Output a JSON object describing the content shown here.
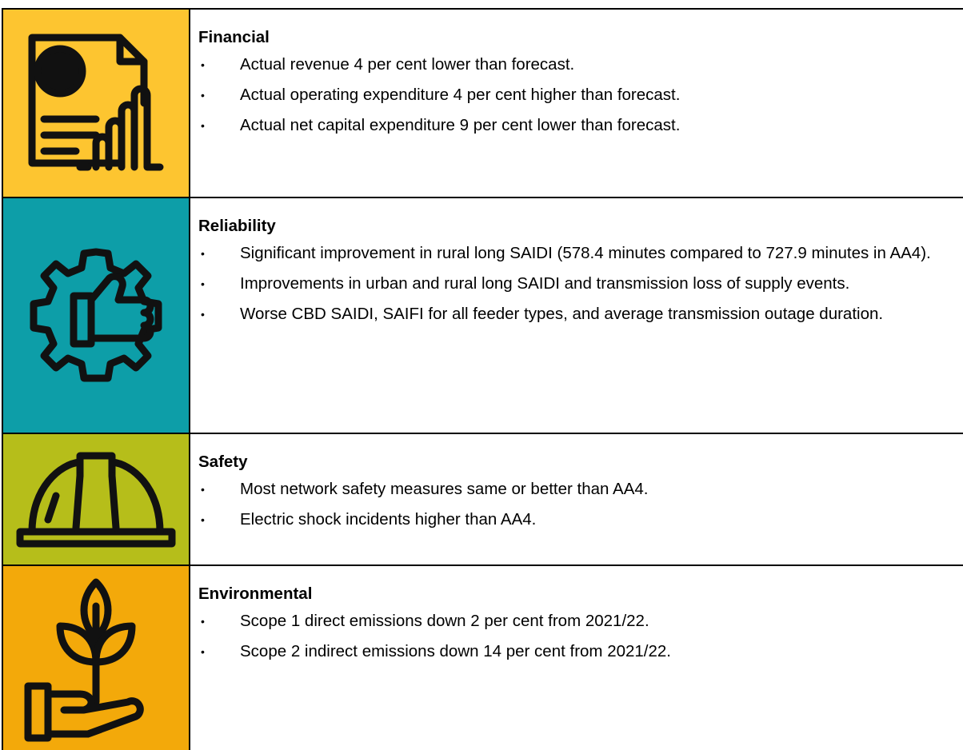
{
  "rows": [
    {
      "heading": "Financial",
      "bullets": [
        "Actual revenue 4 per cent lower than forecast.",
        "Actual operating expenditure 4 per cent higher than forecast.",
        "Actual net capital expenditure 9 per cent lower than forecast."
      ]
    },
    {
      "heading": "Reliability",
      "bullets": [
        "Significant improvement in rural long SAIDI (578.4 minutes compared to 727.9 minutes in AA4).",
        "Improvements in urban and rural long SAIDI and transmission loss of supply events.",
        "Worse CBD SAIDI, SAIFI for all feeder types, and average transmission outage duration."
      ]
    },
    {
      "heading": "Safety",
      "bullets": [
        "Most network safety measures same or better than AA4.",
        "Electric shock incidents higher than AA4."
      ]
    },
    {
      "heading": "Environmental",
      "bullets": [
        "Scope 1 direct emissions down 2 per cent from 2021/22.",
        "Scope 2 indirect emissions down 14 per cent from 2021/22."
      ]
    }
  ]
}
